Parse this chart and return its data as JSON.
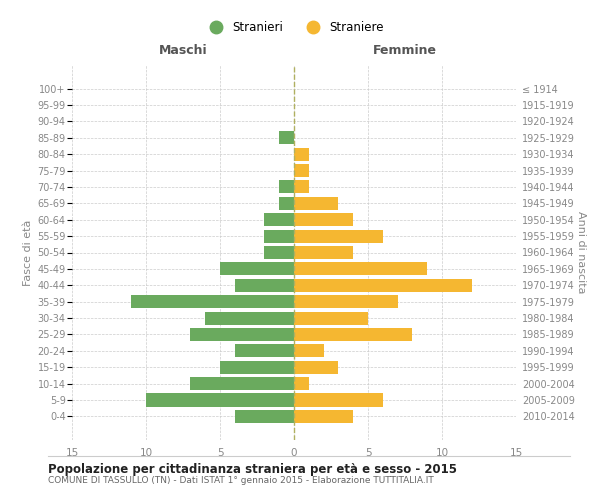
{
  "age_groups": [
    "0-4",
    "5-9",
    "10-14",
    "15-19",
    "20-24",
    "25-29",
    "30-34",
    "35-39",
    "40-44",
    "45-49",
    "50-54",
    "55-59",
    "60-64",
    "65-69",
    "70-74",
    "75-79",
    "80-84",
    "85-89",
    "90-94",
    "95-99",
    "100+"
  ],
  "birth_years": [
    "2010-2014",
    "2005-2009",
    "2000-2004",
    "1995-1999",
    "1990-1994",
    "1985-1989",
    "1980-1984",
    "1975-1979",
    "1970-1974",
    "1965-1969",
    "1960-1964",
    "1955-1959",
    "1950-1954",
    "1945-1949",
    "1940-1944",
    "1935-1939",
    "1930-1934",
    "1925-1929",
    "1920-1924",
    "1915-1919",
    "≤ 1914"
  ],
  "males": [
    4,
    10,
    7,
    5,
    4,
    7,
    6,
    11,
    4,
    5,
    2,
    2,
    2,
    1,
    1,
    0,
    0,
    1,
    0,
    0,
    0
  ],
  "females": [
    4,
    6,
    1,
    3,
    2,
    8,
    5,
    7,
    12,
    9,
    4,
    6,
    4,
    3,
    1,
    1,
    1,
    0,
    0,
    0,
    0
  ],
  "male_color": "#6aaa5e",
  "female_color": "#f5b731",
  "background_color": "#ffffff",
  "grid_color": "#cccccc",
  "title": "Popolazione per cittadinanza straniera per età e sesso - 2015",
  "subtitle": "COMUNE DI TASSULLO (TN) - Dati ISTAT 1° gennaio 2015 - Elaborazione TUTTITALIA.IT",
  "xlabel_left": "Maschi",
  "xlabel_right": "Femmine",
  "ylabel_left": "Fasce di età",
  "ylabel_right": "Anni di nascita",
  "legend_male": "Stranieri",
  "legend_female": "Straniere",
  "xlim": 15,
  "bar_height": 0.8
}
